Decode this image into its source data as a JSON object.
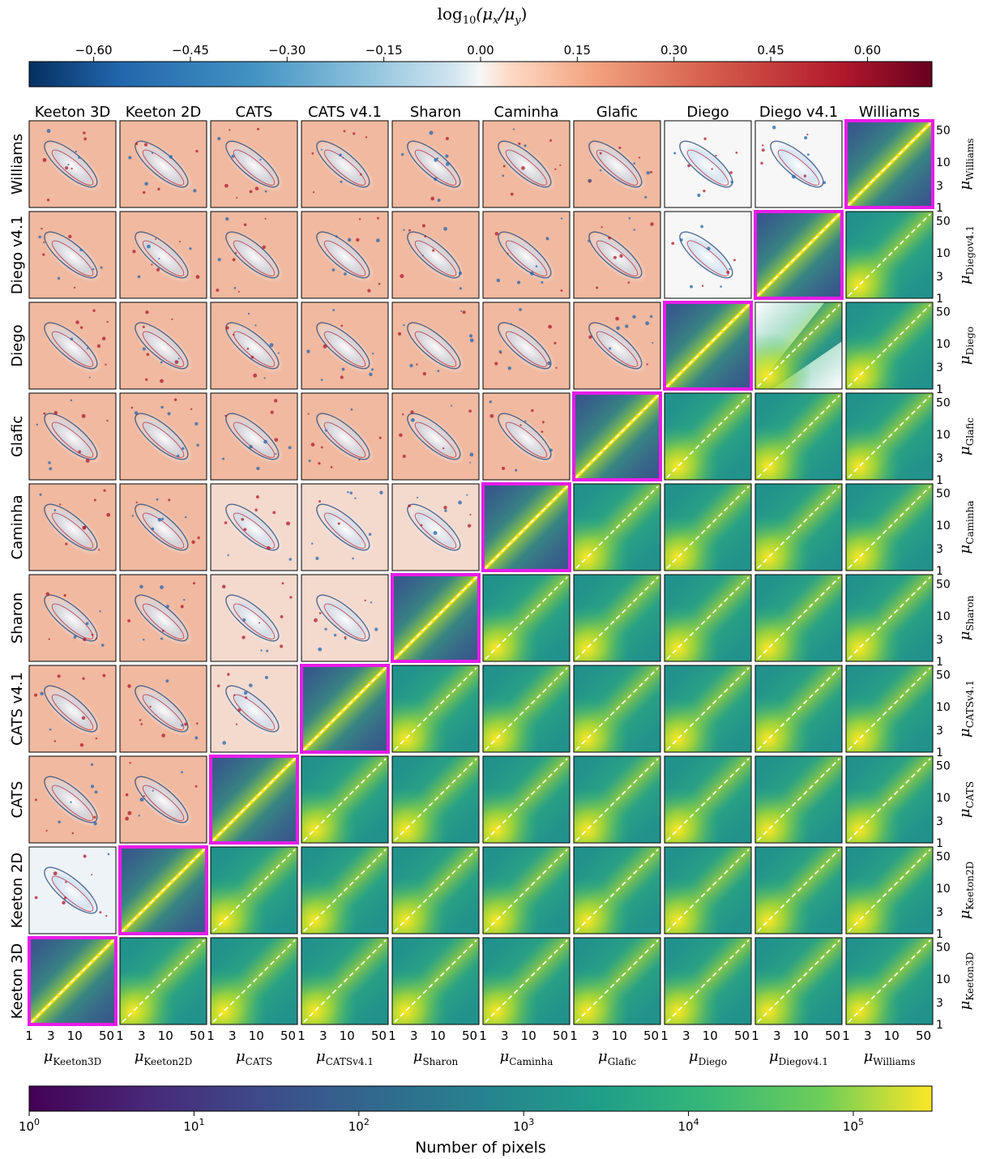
{
  "chart_data": {
    "type": "heatmap",
    "description_role": "corner plot comparing lensing magnification maps of different models",
    "models": [
      "Keeton 3D",
      "Keeton 2D",
      "CATS",
      "CATS v4.1",
      "Sharon",
      "Caminha",
      "Glafic",
      "Diego",
      "Diego v4.1",
      "Williams"
    ],
    "column_labels": [
      "Keeton 3D",
      "Keeton 2D",
      "CATS",
      "CATS v4.1",
      "Sharon",
      "Caminha",
      "Glafic",
      "Diego",
      "Diego v4.1",
      "Williams"
    ],
    "row_labels": [
      "Williams",
      "Diego v4.1",
      "Diego",
      "Glafic",
      "Caminha",
      "Sharon",
      "CATS v4.1",
      "CATS",
      "Keeton 2D",
      "Keeton 3D"
    ],
    "x_axis_subscripts": [
      "Keeton3D",
      "Keeton2D",
      "CATS",
      "CATSv4.1",
      "Sharon",
      "Caminha",
      "Glafic",
      "Diego",
      "Diegov4.1",
      "Williams"
    ],
    "y_axis_subscripts": [
      "Williams",
      "Diegov4.1",
      "Diego",
      "Glafic",
      "Caminha",
      "Sharon",
      "CATSv4.1",
      "CATS",
      "Keeton2D",
      "Keeton3D"
    ],
    "mu_symbol": "μ",
    "axis_ticks": [
      "1",
      "3",
      "10",
      "50"
    ],
    "axis_scale": "log",
    "axis_range": [
      1,
      80
    ],
    "top_colorbar": {
      "label": "log10(μx/μy)",
      "label_main": "log",
      "label_sub": "10",
      "label_rest": "(μ",
      "label_x": "x",
      "label_mid": "/μ",
      "label_y": "y",
      "label_end": ")",
      "range": [
        -0.7,
        0.7
      ],
      "ticks": [
        "−0.60",
        "−0.45",
        "−0.30",
        "−0.15",
        "0.00",
        "0.15",
        "0.30",
        "0.45",
        "0.60"
      ],
      "colormap": "RdBu_r"
    },
    "bottom_colorbar": {
      "label": "Number of pixels",
      "scale": "log",
      "range": [
        1,
        300000
      ],
      "tick_base": "10",
      "tick_exponents": [
        "0",
        "1",
        "2",
        "3",
        "4",
        "5"
      ],
      "colormap": "viridis"
    },
    "diagonal_highlight_color": "#ff00ff",
    "upper_triangle": "magnification ratio maps",
    "lower_triangle": "2D histograms of μx vs μy with dashed 1:1 line"
  },
  "colors": {
    "highlight": "#e81ce8",
    "dashed_line": "#ffffff"
  }
}
